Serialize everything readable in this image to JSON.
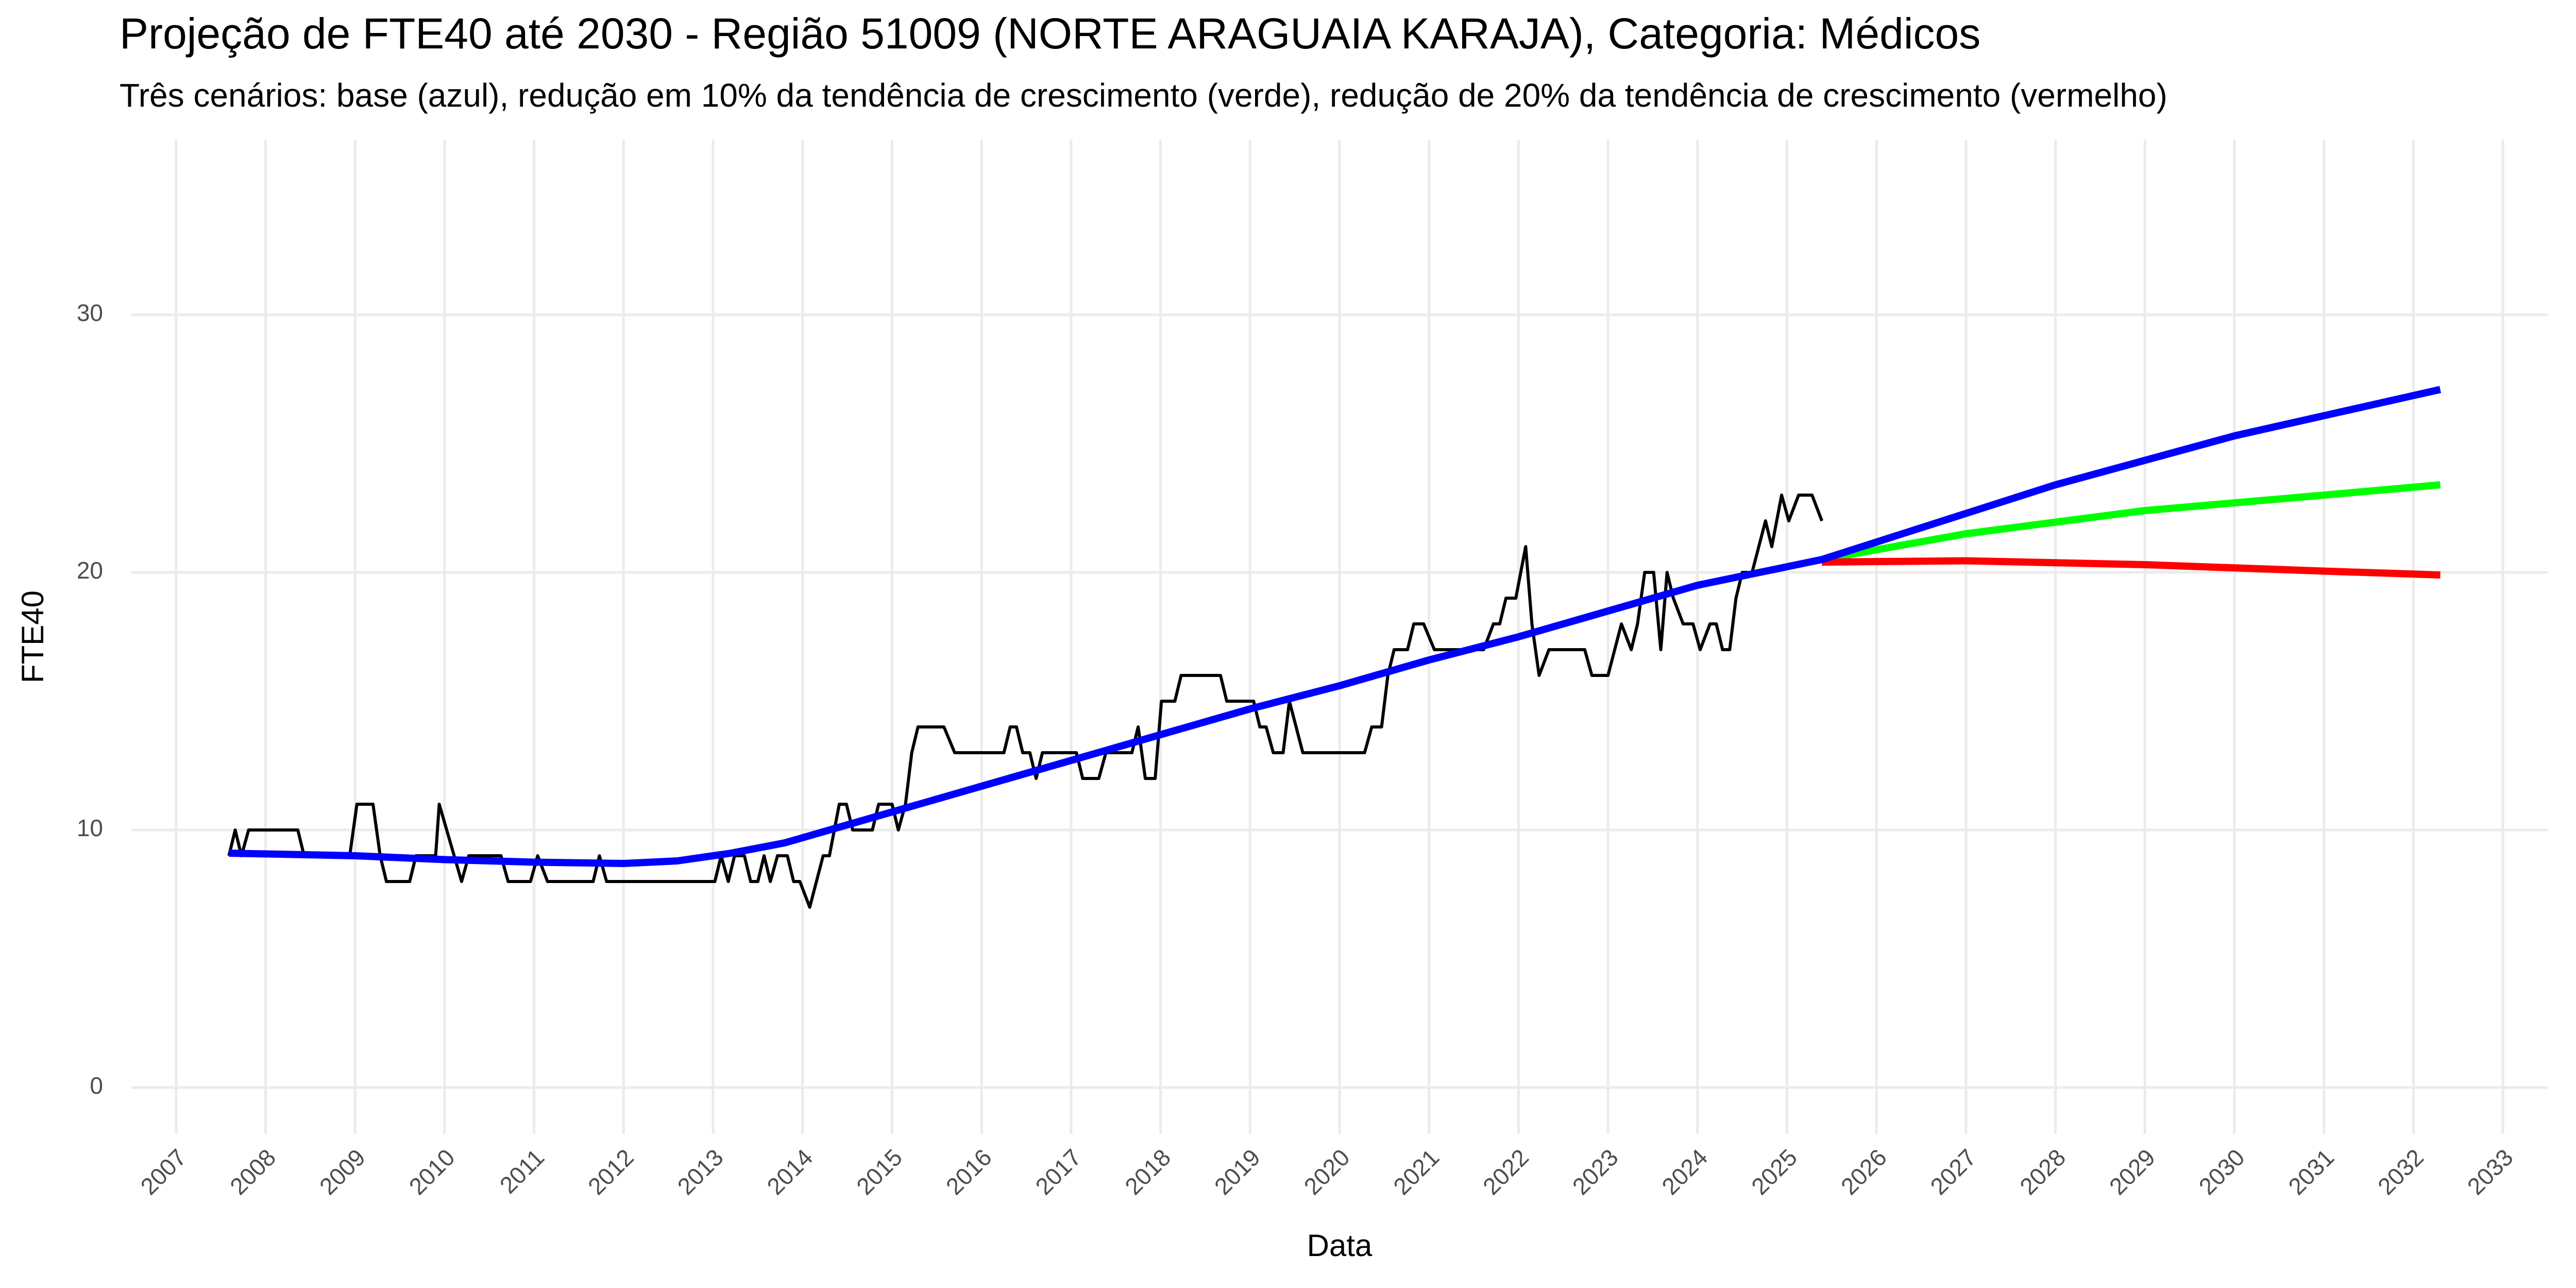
{
  "chart_data": {
    "type": "line",
    "title": "Projeção de FTE40 até 2030 - Região 51009 (NORTE ARAGUAIA KARAJA), Categoria: Médicos",
    "subtitle": "Três cenários: base (azul), redução em 10% da tendência de crescimento (verde), redução de 20% da tendência de crescimento (vermelho)",
    "x_label": "Data",
    "y_label": "FTE40",
    "xlim": [
      2006.5,
      2033.5
    ],
    "xticks": [
      2007,
      2008,
      2009,
      2010,
      2011,
      2012,
      2013,
      2014,
      2015,
      2016,
      2017,
      2018,
      2019,
      2020,
      2021,
      2022,
      2023,
      2024,
      2025,
      2026,
      2027,
      2028,
      2029,
      2030,
      2031,
      2032,
      2033
    ],
    "ylim": [
      -1.8,
      36.8
    ],
    "yticks": [
      0,
      10,
      20,
      30
    ],
    "grid": true,
    "series": [
      {
        "color": "#000000",
        "x": [
          2007.59,
          2007.66,
          2007.73,
          2007.81,
          2008.36,
          2008.43,
          2008.94,
          2009.02,
          2009.2,
          2009.28,
          2009.35,
          2009.61,
          2009.68,
          2009.9,
          2009.94,
          2010.19,
          2010.27,
          2010.63,
          2010.71,
          2010.96,
          2011.04,
          2011.15,
          2011.66,
          2011.73,
          2011.81,
          2013.02,
          2013.09,
          2013.17,
          2013.24,
          2013.35,
          2013.42,
          2013.5,
          2013.57,
          2013.64,
          2013.72,
          2013.83,
          2013.9,
          2013.97,
          2014.08,
          2014.23,
          2014.3,
          2014.41,
          2014.49,
          2014.56,
          2014.78,
          2014.85,
          2015.0,
          2015.07,
          2015.15,
          2015.22,
          2015.29,
          2015.58,
          2015.7,
          2016.25,
          2016.32,
          2016.39,
          2016.46,
          2016.54,
          2016.61,
          2016.68,
          2017.06,
          2017.13,
          2017.31,
          2017.39,
          2017.68,
          2017.75,
          2017.83,
          2017.94,
          2018.01,
          2018.16,
          2018.23,
          2018.67,
          2018.74,
          2019.04,
          2019.11,
          2019.18,
          2019.26,
          2019.37,
          2019.44,
          2019.59,
          2020.28,
          2020.36,
          2020.47,
          2020.54,
          2020.61,
          2020.76,
          2020.83,
          2020.94,
          2021.06,
          2021.61,
          2021.72,
          2021.79,
          2021.86,
          2021.97,
          2022.08,
          2022.15,
          2022.23,
          2022.34,
          2022.74,
          2022.82,
          2023.0,
          2023.15,
          2023.26,
          2023.33,
          2023.41,
          2023.51,
          2023.59,
          2023.66,
          2023.73,
          2023.84,
          2023.95,
          2024.03,
          2024.14,
          2024.21,
          2024.28,
          2024.36,
          2024.43,
          2024.5,
          2024.61,
          2024.76,
          2024.83,
          2024.94,
          2025.02,
          2025.13,
          2025.28,
          2025.39
        ],
        "values": [
          9,
          10,
          9,
          10,
          10,
          9,
          9,
          11,
          11,
          9,
          8,
          8,
          9,
          9,
          11,
          8,
          9,
          9,
          8,
          8,
          9,
          8,
          8,
          9,
          8,
          8,
          9,
          8,
          9,
          9,
          8,
          8,
          9,
          8,
          9,
          9,
          8,
          8,
          7,
          9,
          9,
          11,
          11,
          10,
          10,
          11,
          11,
          10,
          11,
          13,
          14,
          14,
          13,
          13,
          14,
          14,
          13,
          13,
          12,
          13,
          13,
          12,
          12,
          13,
          13,
          14,
          12,
          12,
          15,
          15,
          16,
          16,
          15,
          15,
          14,
          14,
          13,
          13,
          15,
          13,
          13,
          14,
          14,
          16,
          17,
          17,
          18,
          18,
          17,
          17,
          18,
          18,
          19,
          19,
          21,
          18,
          16,
          17,
          17,
          16,
          16,
          18,
          17,
          18,
          20,
          20,
          17,
          20,
          19,
          18,
          18,
          17,
          18,
          18,
          17,
          17,
          19,
          20,
          20,
          22,
          21,
          23,
          22,
          23,
          23,
          22
        ]
      },
      {
        "color": "#00ff00",
        "x": [
          2025.39,
          2027.0,
          2029.0,
          2031.0,
          2032.3
        ],
        "values": [
          20.5,
          21.5,
          22.4,
          23.0,
          23.4
        ]
      },
      {
        "color": "#ff0000",
        "x": [
          2025.39,
          2027.0,
          2029.0,
          2031.0,
          2032.3
        ],
        "values": [
          20.4,
          20.45,
          20.3,
          20.05,
          19.9
        ]
      },
      {
        "color": "#0000ff",
        "x": [
          2007.59,
          2009.0,
          2010.0,
          2011.0,
          2012.0,
          2012.6,
          2013.2,
          2013.8,
          2014.5,
          2015.0,
          2016.0,
          2017.0,
          2018.0,
          2019.0,
          2020.0,
          2021.0,
          2022.0,
          2023.0,
          2024.0,
          2025.39,
          2028.0,
          2030.0,
          2032.3
        ],
        "values": [
          9.1,
          9.0,
          8.85,
          8.75,
          8.7,
          8.8,
          9.1,
          9.5,
          10.2,
          10.7,
          11.7,
          12.7,
          13.7,
          14.7,
          15.6,
          16.6,
          17.5,
          18.5,
          19.5,
          20.5,
          23.4,
          25.3,
          27.1
        ]
      }
    ]
  }
}
